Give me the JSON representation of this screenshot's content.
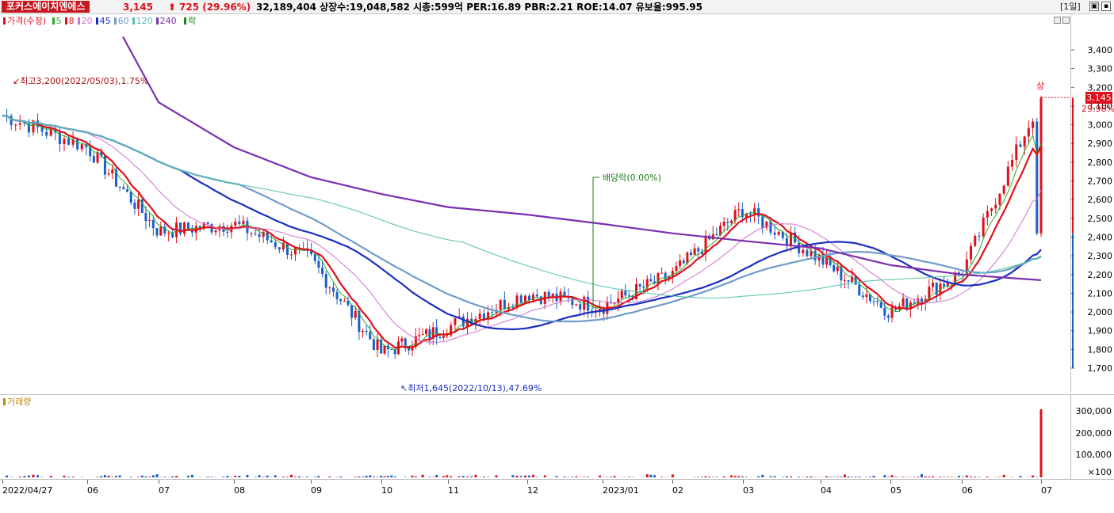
{
  "header": {
    "stock_name": "포커스에이치엔에스",
    "price": "3,145",
    "change_arrow": "⬆",
    "change": "725 (29.96%)",
    "stats": "32,189,404  상장수:19,048,582  시총:599억  PER:16.89  PBR:2.21  ROE:14.07  유보율:995.95",
    "period": "[1일]",
    "win_buttons": [
      "restore-icon",
      "close-icon"
    ]
  },
  "legend": {
    "price_label": "가격(수정)",
    "price_color": "#e0101a",
    "ma": [
      {
        "label": "5",
        "color": "#2eaa2e"
      },
      {
        "label": "8",
        "color": "#e0101a"
      },
      {
        "label": "20",
        "color": "#d070d0"
      },
      {
        "label": "45",
        "color": "#1a2fc0"
      },
      {
        "label": "60",
        "color": "#6f9cc8"
      },
      {
        "label": "120",
        "color": "#4fc2a8"
      },
      {
        "label": "240",
        "color": "#7a2fb0"
      }
    ],
    "ex_label": "락",
    "ex_color": "#1a8a1a"
  },
  "volume_legend": "거래량",
  "annotations": {
    "high": "최고3,200(2022/05/03),1.75%",
    "low": "최저1,645(2022/10/13),47.69%",
    "dividend": "배당락(0.00%)",
    "up_limit": "상",
    "current_price": "3,145",
    "current_pct": "29.96%"
  },
  "chart_data": {
    "type": "line",
    "price_ticks": [
      "3,400",
      "3,300",
      "3,200",
      "3,100",
      "3,000",
      "2,900",
      "2,800",
      "2,700",
      "2,600",
      "2,500",
      "2,400",
      "2,300",
      "2,200",
      "2,100",
      "2,000",
      "1,900",
      "1,800",
      "1,700"
    ],
    "volume_ticks": [
      "300,000",
      "200,000",
      "100,000",
      "×100"
    ],
    "dates": [
      "2022/04/27",
      "06",
      "07",
      "08",
      "09",
      "10",
      "11",
      "12",
      "2023/01",
      "02",
      "03",
      "04",
      "05",
      "06",
      "07"
    ],
    "price_close_monthly": [
      3050,
      2880,
      2430,
      2470,
      2280,
      1780,
      1920,
      2100,
      2030,
      2200,
      2550,
      2280,
      2000,
      2210,
      3145
    ],
    "ma240_monthly": [
      null,
      3470,
      3120,
      2880,
      2720,
      2630,
      2560,
      2520,
      2470,
      2420,
      2380,
      2340,
      2250,
      2200,
      2170
    ],
    "volume_recent_x100": 3100
  }
}
